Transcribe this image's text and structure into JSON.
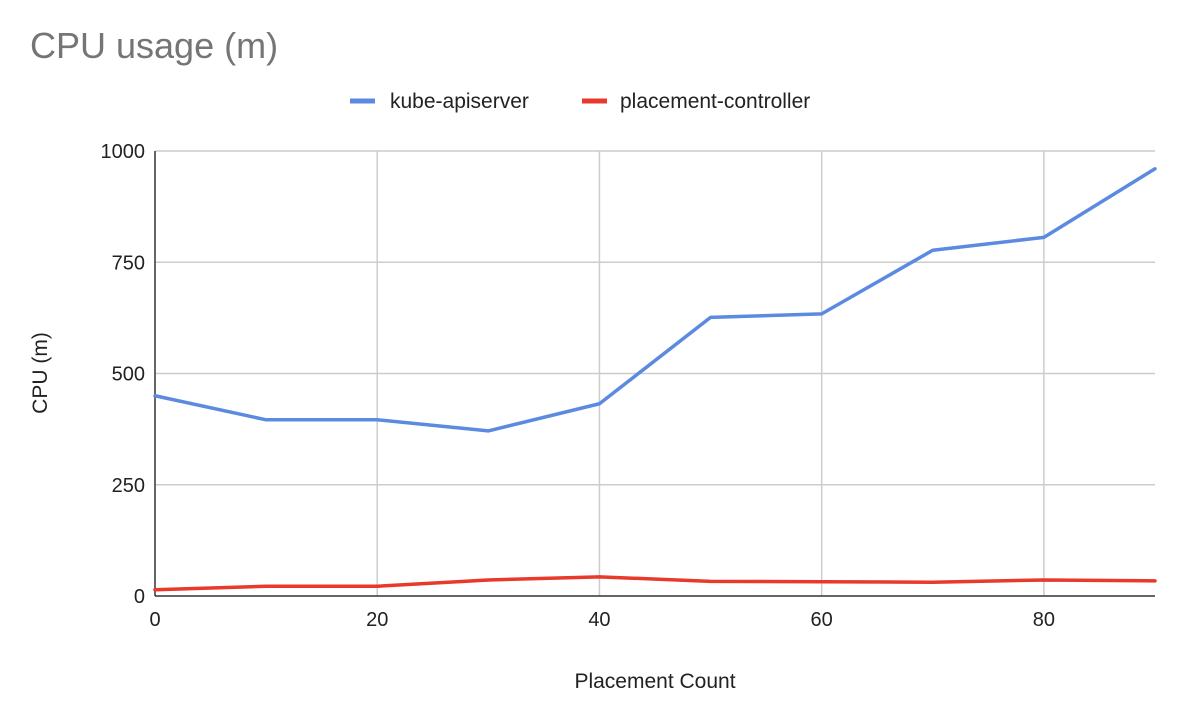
{
  "chart_data": {
    "type": "line",
    "title": "CPU usage (m)",
    "xlabel": "Placement Count",
    "ylabel": "CPU (m)",
    "x": [
      0,
      10,
      20,
      30,
      40,
      50,
      60,
      70,
      80,
      90
    ],
    "xlim": [
      0,
      90
    ],
    "ylim": [
      0,
      1000
    ],
    "xticks": [
      0,
      20,
      40,
      60,
      80
    ],
    "yticks": [
      0,
      250,
      500,
      750,
      1000
    ],
    "grid": true,
    "legend_position": "top",
    "series": [
      {
        "name": "kube-apiserver",
        "color": "#5b8ae0",
        "values": [
          450,
          396,
          396,
          371,
          432,
          626,
          634,
          777,
          806,
          960
        ]
      },
      {
        "name": "placement-controller",
        "color": "#e8392b",
        "values": [
          14,
          22,
          22,
          36,
          43,
          33,
          32,
          31,
          36,
          34
        ]
      }
    ]
  }
}
